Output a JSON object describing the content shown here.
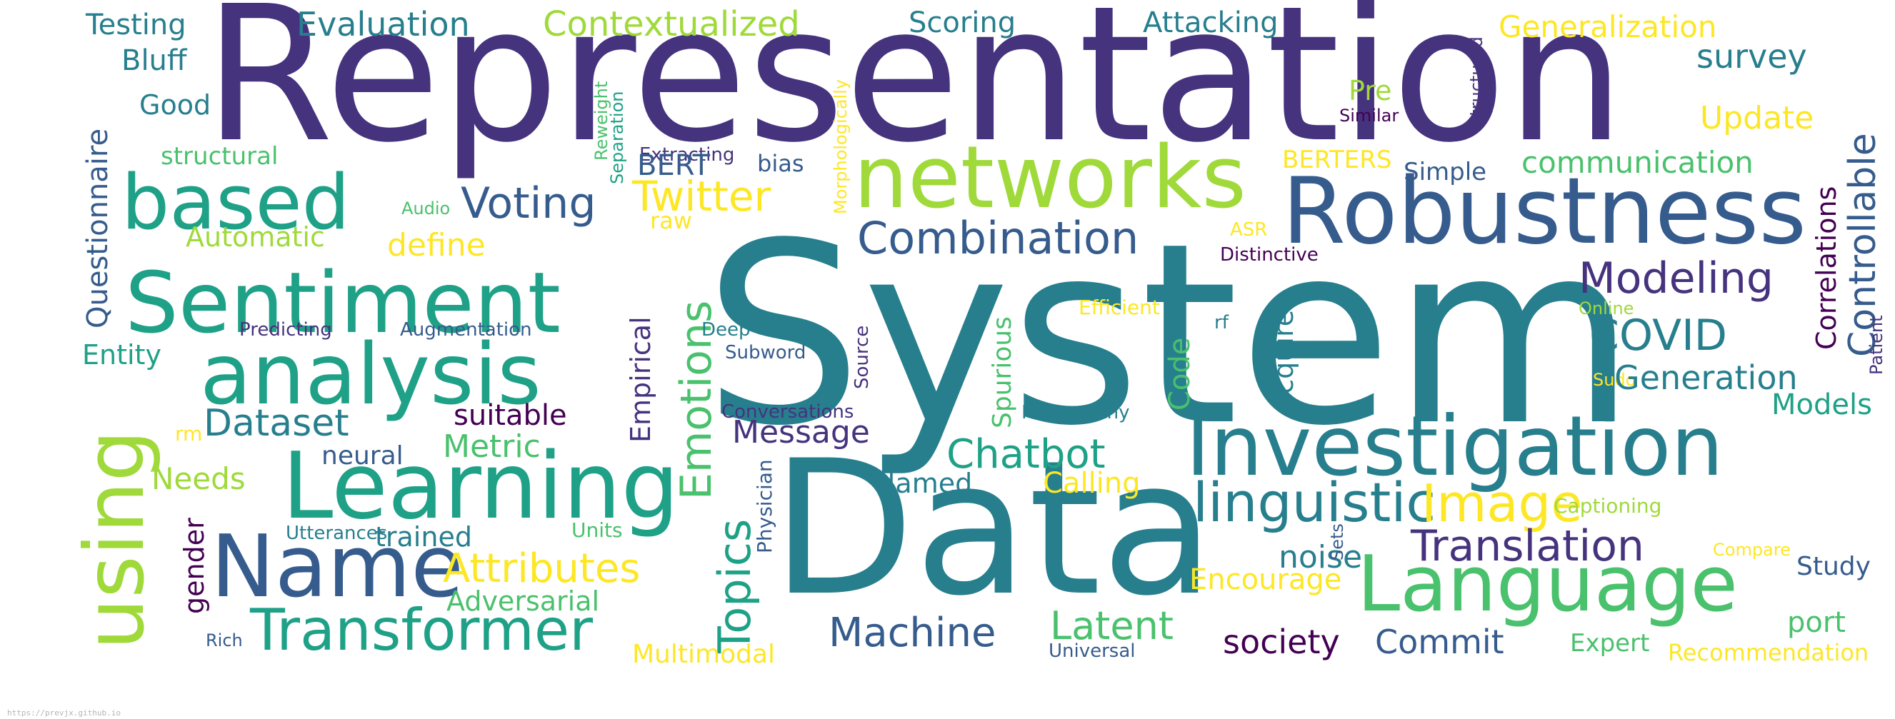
{
  "palette": {
    "v1": "#440154",
    "v2": "#46337e",
    "v3": "#365c8d",
    "v4": "#277f8e",
    "v5": "#1fa187",
    "v6": "#4ac16d",
    "v7": "#9fda3a",
    "v8": "#fde725"
  },
  "words": [
    {
      "text": "Representation",
      "color": "v2"
    },
    {
      "text": "System",
      "color": "v4"
    },
    {
      "text": "Data",
      "color": "v4"
    },
    {
      "text": "networks",
      "color": "v7"
    },
    {
      "text": "Robustness",
      "color": "v3"
    },
    {
      "text": "Investigation",
      "color": "v4"
    },
    {
      "text": "Language",
      "color": "v6"
    },
    {
      "text": "Learning",
      "color": "v5"
    },
    {
      "text": "Sentiment",
      "color": "v5"
    },
    {
      "text": "analysis",
      "color": "v5"
    },
    {
      "text": "based",
      "color": "v5"
    },
    {
      "text": "using",
      "color": "v7"
    },
    {
      "text": "Name",
      "color": "v3"
    },
    {
      "text": "Transformer",
      "color": "v5"
    },
    {
      "text": "linguistic",
      "color": "v4"
    },
    {
      "text": "Image",
      "color": "v8"
    },
    {
      "text": "Translation",
      "color": "v2"
    },
    {
      "text": "Testing",
      "color": "v4"
    },
    {
      "text": "Evaluation",
      "color": "v4"
    },
    {
      "text": "Contextualized",
      "color": "v7"
    },
    {
      "text": "Scoring",
      "color": "v4"
    },
    {
      "text": "Attacking",
      "color": "v4"
    },
    {
      "text": "Generalization",
      "color": "v8"
    },
    {
      "text": "survey",
      "color": "v4"
    },
    {
      "text": "Bluff",
      "color": "v4"
    },
    {
      "text": "Good",
      "color": "v4"
    },
    {
      "text": "structural",
      "color": "v6"
    },
    {
      "text": "Questionnaire",
      "color": "v3"
    },
    {
      "text": "Structured",
      "color": "v2"
    },
    {
      "text": "Controllable",
      "color": "v3"
    },
    {
      "text": "Update",
      "color": "v8"
    },
    {
      "text": "communication",
      "color": "v6"
    },
    {
      "text": "Simple",
      "color": "v3"
    },
    {
      "text": "BERTERS",
      "color": "v8"
    },
    {
      "text": "Pre",
      "color": "v7"
    },
    {
      "text": "Similar",
      "color": "v1"
    },
    {
      "text": "Reweight",
      "color": "v6"
    },
    {
      "text": "Separation",
      "color": "v5"
    },
    {
      "text": "Morphologically",
      "color": "v8"
    },
    {
      "text": "Extracting",
      "color": "v2"
    },
    {
      "text": "bias",
      "color": "v3"
    },
    {
      "text": "BERT",
      "color": "v3"
    },
    {
      "text": "Audio",
      "color": "v6"
    },
    {
      "text": "Voting",
      "color": "v3"
    },
    {
      "text": "Twitter",
      "color": "v8"
    },
    {
      "text": "raw",
      "color": "v8"
    },
    {
      "text": "Automatic",
      "color": "v7"
    },
    {
      "text": "define",
      "color": "v8"
    },
    {
      "text": "Combination",
      "color": "v3"
    },
    {
      "text": "ASR",
      "color": "v8"
    },
    {
      "text": "Distinctive",
      "color": "v1"
    },
    {
      "text": "Correlations",
      "color": "v1"
    },
    {
      "text": "Modeling",
      "color": "v2"
    },
    {
      "text": "Patient",
      "color": "v2"
    },
    {
      "text": "Online",
      "color": "v7"
    },
    {
      "text": "COVID",
      "color": "v4"
    },
    {
      "text": "Sudo",
      "color": "v8"
    },
    {
      "text": "Generation",
      "color": "v4"
    },
    {
      "text": "Models",
      "color": "v5"
    },
    {
      "text": "Efficient",
      "color": "v8"
    },
    {
      "text": "rf",
      "color": "v4"
    },
    {
      "text": "acquire",
      "color": "v4"
    },
    {
      "text": "Predicting",
      "color": "v2"
    },
    {
      "text": "Augmentation",
      "color": "v3"
    },
    {
      "text": "Entity",
      "color": "v5"
    },
    {
      "text": "Emotions",
      "color": "v6"
    },
    {
      "text": "Empirical",
      "color": "v2"
    },
    {
      "text": "Deep",
      "color": "v4"
    },
    {
      "text": "Subword",
      "color": "v3"
    },
    {
      "text": "Source",
      "color": "v2"
    },
    {
      "text": "Code",
      "color": "v6"
    },
    {
      "text": "Spurious",
      "color": "v6"
    },
    {
      "text": "Dataset",
      "color": "v4"
    },
    {
      "text": "suitable",
      "color": "v1"
    },
    {
      "text": "Conversations",
      "color": "v2"
    },
    {
      "text": "Message",
      "color": "v2"
    },
    {
      "text": "Noteworthy",
      "color": "v4"
    },
    {
      "text": "neural",
      "color": "v3"
    },
    {
      "text": "Metric",
      "color": "v6"
    },
    {
      "text": "rm",
      "color": "v8"
    },
    {
      "text": "Topics",
      "color": "v5"
    },
    {
      "text": "Physician",
      "color": "v3"
    },
    {
      "text": "Chatbot",
      "color": "v5"
    },
    {
      "text": "Needs",
      "color": "v7"
    },
    {
      "text": "Named",
      "color": "v4"
    },
    {
      "text": "Calling",
      "color": "v8"
    },
    {
      "text": "Captioning",
      "color": "v7"
    },
    {
      "text": "Utterances",
      "color": "v4"
    },
    {
      "text": "trained",
      "color": "v4"
    },
    {
      "text": "Units",
      "color": "v6"
    },
    {
      "text": "gender",
      "color": "v1"
    },
    {
      "text": "Attributes",
      "color": "v8"
    },
    {
      "text": "Adversarial",
      "color": "v6"
    },
    {
      "text": "noise",
      "color": "v4"
    },
    {
      "text": "Sets",
      "color": "v3"
    },
    {
      "text": "Compare",
      "color": "v8"
    },
    {
      "text": "Study",
      "color": "v3"
    },
    {
      "text": "Encourage",
      "color": "v8"
    },
    {
      "text": "Rich",
      "color": "v3"
    },
    {
      "text": "Machine",
      "color": "v3"
    },
    {
      "text": "Latent",
      "color": "v6"
    },
    {
      "text": "society",
      "color": "v1"
    },
    {
      "text": "Commit",
      "color": "v3"
    },
    {
      "text": "port",
      "color": "v6"
    },
    {
      "text": "Expert",
      "color": "v6"
    },
    {
      "text": "Recommendation",
      "color": "v8"
    },
    {
      "text": "Multimodal",
      "color": "v8"
    },
    {
      "text": "Universal",
      "color": "v3"
    }
  ],
  "credit": "https://prevjx.github.io"
}
